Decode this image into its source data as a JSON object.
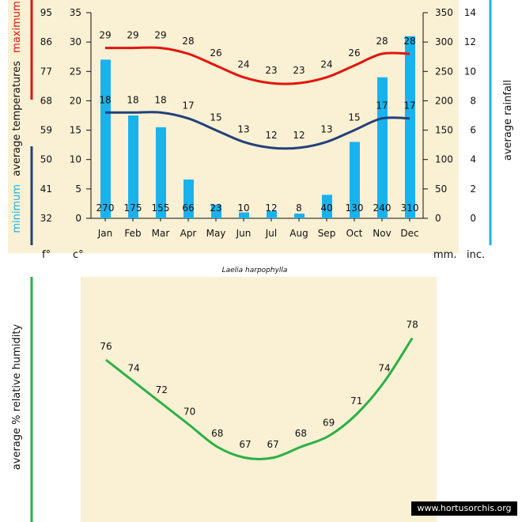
{
  "colors": {
    "background": "#faf0d4",
    "rain_bar": "#1ab2ec",
    "max_line": "#e3140e",
    "min_line": "#23407a",
    "humidity_line": "#2ab145",
    "left_bar_red": "#e3140e",
    "left_bar_navy": "#23407a",
    "right_bar_blue": "#1ab2ec",
    "humidity_bar": "#2ab145"
  },
  "units": {
    "fahrenheit": "f°",
    "celsius": "c°",
    "mm": "mm.",
    "inches": "inc."
  },
  "species": "Laelia harpophylla",
  "watermark": "www.hortusorchis.org",
  "axis_titles": {
    "minimum": "minimum",
    "average_temperatures": "average temperatures",
    "maximum": "maximum",
    "average_rainfall": "average rainfall",
    "humidity": "average %  relative humidity"
  },
  "chart_data": [
    {
      "type": "bar",
      "categories": [
        "Jan",
        "Feb",
        "Mar",
        "Apr",
        "May",
        "Jun",
        "Jul",
        "Aug",
        "Sep",
        "Oct",
        "Nov",
        "Dec"
      ],
      "series": [
        {
          "kind": "bar",
          "values": [
            270,
            175,
            155,
            66,
            23,
            10,
            12,
            8,
            40,
            130,
            240,
            310
          ]
        },
        {
          "kind": "line",
          "values": [
            29,
            29,
            29,
            28,
            26,
            24,
            23,
            23,
            24,
            26,
            28,
            28
          ]
        },
        {
          "kind": "line",
          "values": [
            18,
            18,
            18,
            17,
            15,
            13,
            12,
            12,
            13,
            15,
            17,
            17
          ]
        }
      ],
      "axes": {
        "fahrenheit_ticks": [
          32,
          41,
          50,
          59,
          68,
          77,
          86,
          95
        ],
        "celsius_ticks": [
          0,
          5,
          10,
          15,
          20,
          25,
          30,
          35
        ],
        "mm_ticks": [
          0,
          50,
          100,
          150,
          200,
          250,
          300,
          350
        ],
        "inch_ticks": [
          0,
          2,
          4,
          6,
          8,
          10,
          12,
          14
        ]
      },
      "celsius_range": [
        0,
        35
      ],
      "mm_range": [
        0,
        350
      ]
    },
    {
      "type": "line",
      "categories": [
        "Jan",
        "Feb",
        "Mar",
        "Apr",
        "May",
        "Jun",
        "Jul",
        "Aug",
        "Sep",
        "Oct",
        "Nov",
        "Dec"
      ],
      "series": [
        {
          "values": [
            76,
            74,
            72,
            70,
            68,
            67,
            67,
            68,
            69,
            71,
            74,
            78
          ]
        }
      ],
      "ylim": [
        64,
        80
      ]
    }
  ]
}
